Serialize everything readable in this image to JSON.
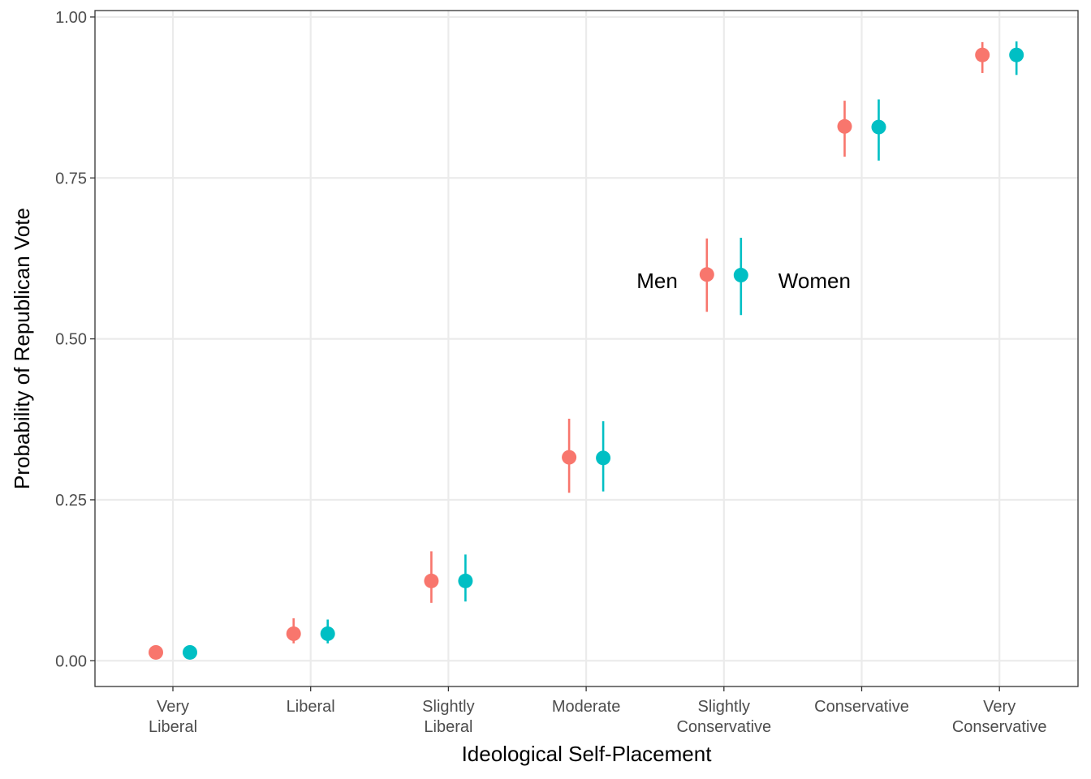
{
  "chart_data": {
    "type": "scatter",
    "xlabel": "Ideological Self-Placement",
    "ylabel": "Probability of Republican Vote",
    "ylim": [
      -0.04,
      1.01
    ],
    "y_ticks": [
      "0.00",
      "0.25",
      "0.50",
      "0.75",
      "1.00"
    ],
    "y_tick_values": [
      0,
      0.25,
      0.5,
      0.75,
      1.0
    ],
    "categories": [
      [
        "Very",
        "Liberal"
      ],
      [
        "Liberal"
      ],
      [
        "Slightly",
        "Liberal"
      ],
      [
        "Moderate"
      ],
      [
        "Slightly",
        "Conservative"
      ],
      [
        "Conservative"
      ],
      [
        "Very",
        "Conservative"
      ]
    ],
    "grid": true,
    "series": [
      {
        "name": "Men",
        "color": "#F8766D",
        "values": [
          0.013,
          0.042,
          0.124,
          0.316,
          0.6,
          0.83,
          0.941
        ],
        "lower": [
          0.013,
          0.027,
          0.09,
          0.261,
          0.542,
          0.783,
          0.913
        ],
        "upper": [
          0.013,
          0.066,
          0.17,
          0.376,
          0.656,
          0.87,
          0.961
        ]
      },
      {
        "name": "Women",
        "color": "#00BFC4",
        "values": [
          0.013,
          0.042,
          0.124,
          0.315,
          0.599,
          0.829,
          0.941
        ],
        "lower": [
          0.013,
          0.027,
          0.092,
          0.263,
          0.537,
          0.777,
          0.91
        ],
        "upper": [
          0.013,
          0.064,
          0.165,
          0.372,
          0.657,
          0.872,
          0.962
        ]
      }
    ],
    "annotations": [
      {
        "text": "Men",
        "category_index": 4,
        "y": 0.59,
        "align": "right"
      },
      {
        "text": "Women",
        "category_index": 4,
        "y": 0.59,
        "align": "left"
      }
    ]
  }
}
